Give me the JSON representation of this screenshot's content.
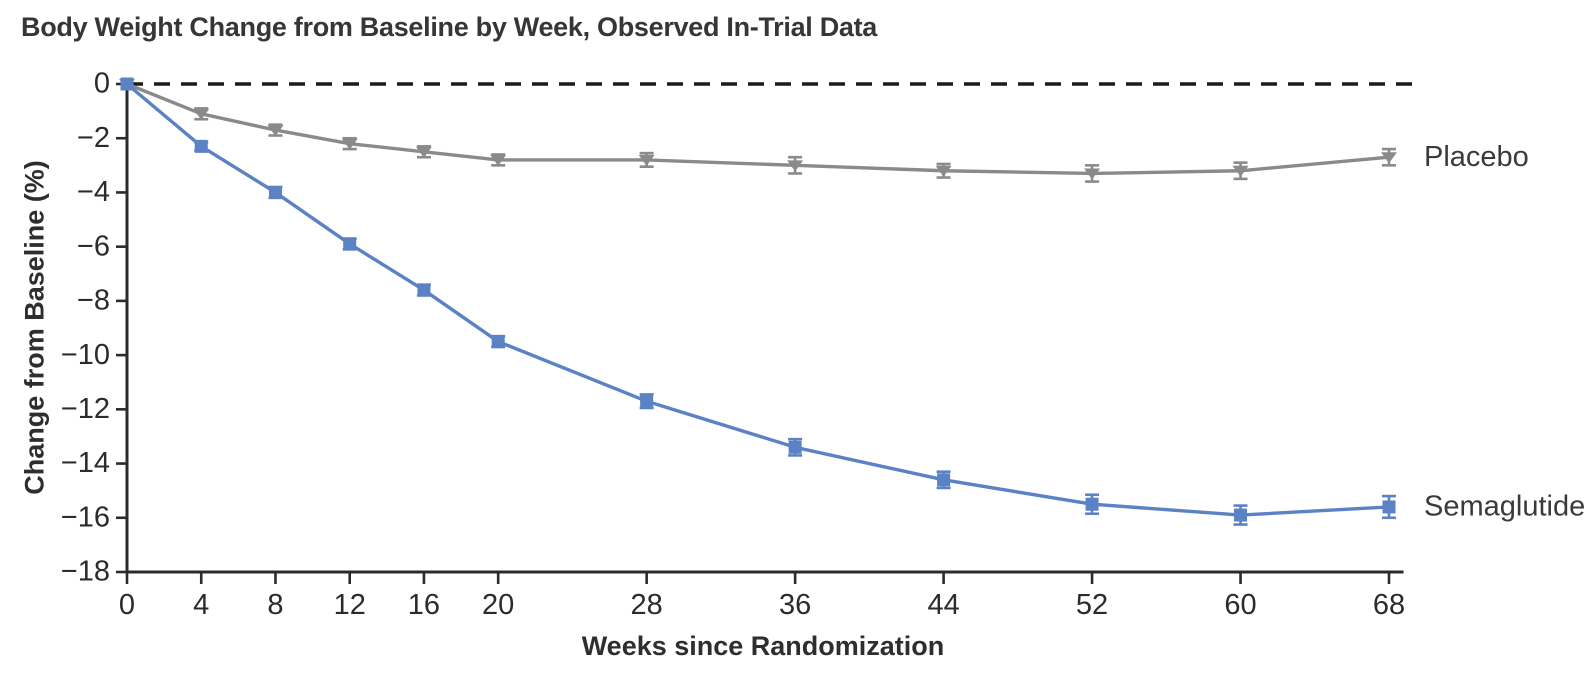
{
  "figure": {
    "kind": "clinical-trial-line-chart",
    "background": "#ffffff"
  },
  "chart_data": {
    "type": "line",
    "title": "Body Weight Change from Baseline by Week, Observed In-Trial Data",
    "xlabel": "Weeks since Randomization",
    "ylabel": "Change from Baseline (%)",
    "xlim": [
      0,
      68
    ],
    "ylim": [
      -18,
      0
    ],
    "x_ticks": [
      0,
      4,
      8,
      12,
      16,
      20,
      28,
      36,
      44,
      52,
      60,
      68
    ],
    "y_ticks": [
      0,
      -2,
      -4,
      -6,
      -8,
      -10,
      -12,
      -14,
      -16,
      -18
    ],
    "grid": false,
    "zero_reference_line": true,
    "reference_line_style": "dashed",
    "reference_line_color": "#1a1a1a",
    "axis_color": "#2b2b2b",
    "tick_label_color": "#2b2b2b",
    "legend_position": "right-of-last-point",
    "x": [
      0,
      4,
      8,
      12,
      16,
      20,
      28,
      36,
      44,
      52,
      60,
      68
    ],
    "series": [
      {
        "name": "Placebo",
        "color": "#8a8a8a",
        "marker": "triangle-down",
        "values": [
          0,
          -1.1,
          -1.7,
          -2.2,
          -2.5,
          -2.8,
          -2.8,
          -3.0,
          -3.2,
          -3.3,
          -3.2,
          -2.7
        ],
        "error": [
          0,
          0.2,
          0.2,
          0.2,
          0.2,
          0.2,
          0.25,
          0.3,
          0.25,
          0.3,
          0.3,
          0.3
        ]
      },
      {
        "name": "Semaglutide",
        "color": "#5b82c4",
        "marker": "square",
        "values": [
          0,
          -2.3,
          -4.0,
          -5.9,
          -7.6,
          -9.5,
          -11.7,
          -13.4,
          -14.6,
          -15.5,
          -15.9,
          -15.6
        ],
        "error": [
          0,
          0.15,
          0.2,
          0.2,
          0.2,
          0.2,
          0.25,
          0.3,
          0.3,
          0.35,
          0.35,
          0.4
        ]
      }
    ]
  }
}
